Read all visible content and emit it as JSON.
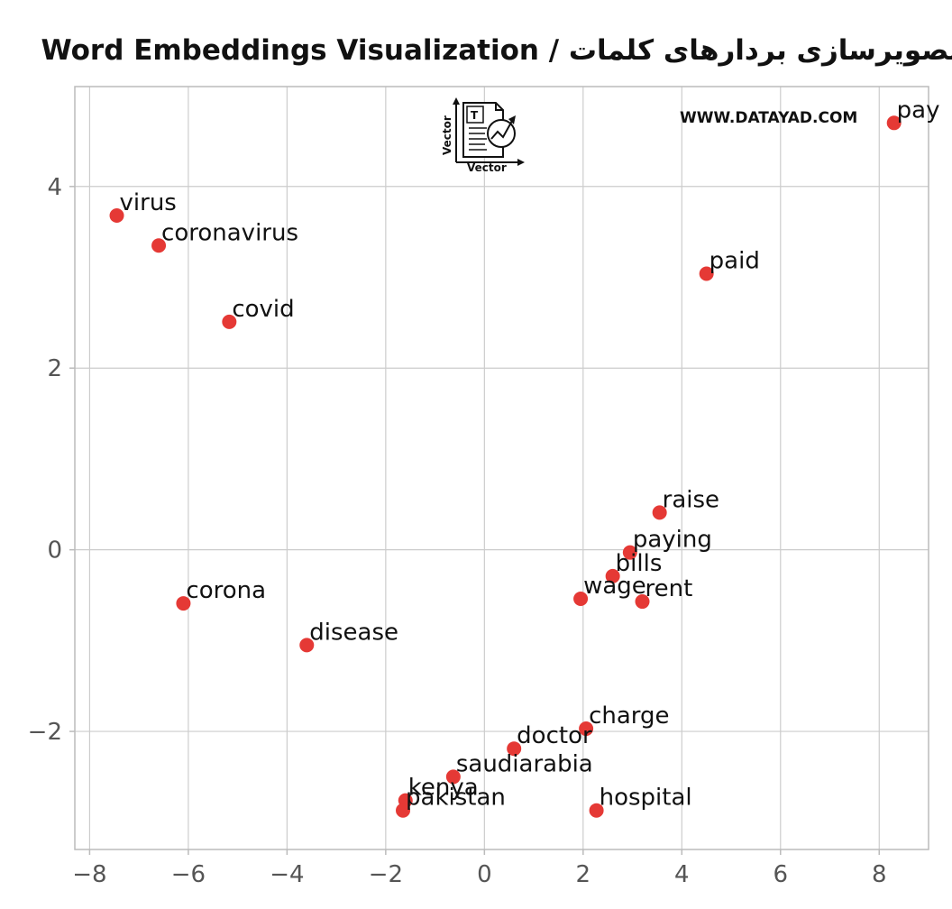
{
  "chart_data": {
    "type": "scatter",
    "title": "Word Embeddings Visualization / تصویرسازی بردارهای کلمات",
    "xlabel": "",
    "ylabel": "",
    "xlim": [
      -8.3,
      9.0
    ],
    "ylim": [
      -3.3,
      5.1
    ],
    "xticks": [
      -8,
      -6,
      -4,
      -2,
      0,
      2,
      4,
      6,
      8
    ],
    "yticks": [
      -2,
      0,
      2,
      4
    ],
    "grid": true,
    "point_color": "#e53935",
    "points": [
      {
        "label": "pay",
        "x": 8.3,
        "y": 4.7
      },
      {
        "label": "virus",
        "x": -7.45,
        "y": 3.68
      },
      {
        "label": "coronavirus",
        "x": -6.6,
        "y": 3.35
      },
      {
        "label": "paid",
        "x": 4.5,
        "y": 3.04
      },
      {
        "label": "covid",
        "x": -5.17,
        "y": 2.51
      },
      {
        "label": "raise",
        "x": 3.55,
        "y": 0.41
      },
      {
        "label": "paying",
        "x": 2.95,
        "y": -0.03
      },
      {
        "label": "bills",
        "x": 2.6,
        "y": -0.29
      },
      {
        "label": "wage",
        "x": 1.95,
        "y": -0.54
      },
      {
        "label": "rent",
        "x": 3.2,
        "y": -0.57
      },
      {
        "label": "corona",
        "x": -6.1,
        "y": -0.59
      },
      {
        "label": "disease",
        "x": -3.6,
        "y": -1.05
      },
      {
        "label": "charge",
        "x": 2.06,
        "y": -1.97
      },
      {
        "label": "doctor",
        "x": 0.6,
        "y": -2.19
      },
      {
        "label": "saudiarabia",
        "x": -0.63,
        "y": -2.5
      },
      {
        "label": "kenya",
        "x": -1.6,
        "y": -2.76
      },
      {
        "label": "pakistan",
        "x": -1.65,
        "y": -2.87
      },
      {
        "label": "hospital",
        "x": 2.27,
        "y": -2.87
      }
    ]
  },
  "watermark": {
    "site": "WWW.DATAYAD.COM",
    "logo_x_text": "Vector",
    "logo_y_text": "Vector",
    "logo_doc_letter": "T"
  }
}
